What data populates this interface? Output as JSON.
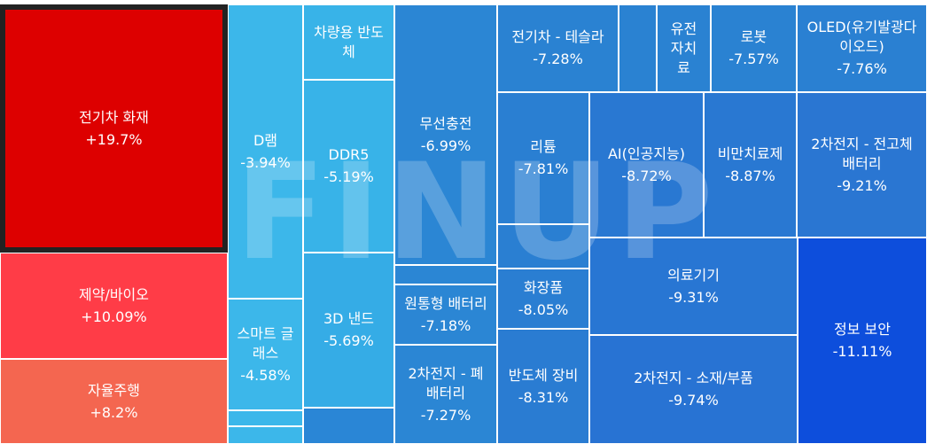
{
  "watermark": "FINUP",
  "chart_data": {
    "type": "treemap",
    "value_unit": "%",
    "items": [
      {
        "id": "ev-fire",
        "label": "전기차 화재",
        "value": "+19.7%",
        "change": 19.7,
        "color": "#dd0000",
        "selected": true
      },
      {
        "id": "pharma-bio",
        "label": "제약/바이오",
        "value": "+10.09%",
        "change": 10.09,
        "color": "#ff3c47"
      },
      {
        "id": "autonomous",
        "label": "자율주행",
        "value": "+8.2%",
        "change": 8.2,
        "color": "#f46650"
      },
      {
        "id": "dram",
        "label": "D램",
        "value": "-3.94%",
        "change": -3.94,
        "color": "#3cb7ea"
      },
      {
        "id": "smart-glass",
        "label": "스마트 글\n래스",
        "value": "-4.58%",
        "change": -4.58,
        "color": "#3cb7ea"
      },
      {
        "id": "misc-a",
        "label": "",
        "value": "",
        "color": "#3cb7ea"
      },
      {
        "id": "misc-b",
        "label": "",
        "value": "",
        "color": "#3cb7ea"
      },
      {
        "id": "auto-semi",
        "label": "차량용 반도\n체",
        "value": "",
        "color": "#38b3e8"
      },
      {
        "id": "ddr5",
        "label": "DDR5",
        "value": "-5.19%",
        "change": -5.19,
        "color": "#38b3e8"
      },
      {
        "id": "3d-nand",
        "label": "3D 낸드",
        "value": "-5.69%",
        "change": -5.69,
        "color": "#35ace6"
      },
      {
        "id": "misc-c",
        "label": "",
        "value": "",
        "color": "#2a86d6"
      },
      {
        "id": "wireless-charge",
        "label": "무선충전",
        "value": "-6.99%",
        "change": -6.99,
        "color": "#2b86d4"
      },
      {
        "id": "misc-d",
        "label": "",
        "value": "",
        "color": "#2b86d4"
      },
      {
        "id": "cyl-battery",
        "label": "원통형 배터리",
        "value": "-7.18%",
        "change": -7.18,
        "color": "#2b86d4"
      },
      {
        "id": "battery-recycle",
        "label": "2차전지 - 폐\n배터리",
        "value": "-7.27%",
        "change": -7.27,
        "color": "#2b86d4"
      },
      {
        "id": "ev-tesla",
        "label": "전기차 - 테슬라",
        "value": "-7.28%",
        "change": -7.28,
        "color": "#2a82d2"
      },
      {
        "id": "misc-e",
        "label": "",
        "value": "",
        "color": "#2a82d2"
      },
      {
        "id": "gene-therapy",
        "label": "유전\n자치\n료",
        "value": "",
        "color": "#2a82d2"
      },
      {
        "id": "robot",
        "label": "로봇",
        "value": "-7.57%",
        "change": -7.57,
        "color": "#2a82d2"
      },
      {
        "id": "oled",
        "label": "OLED(유기발광다\n이오드)",
        "value": "-7.76%",
        "change": -7.76,
        "color": "#2a80d2"
      },
      {
        "id": "lithium",
        "label": "리튬",
        "value": "-7.81%",
        "change": -7.81,
        "color": "#2a7fd2"
      },
      {
        "id": "misc-f",
        "label": "",
        "value": "",
        "color": "#2a7fd2"
      },
      {
        "id": "cosmetics",
        "label": "화장품",
        "value": "-8.05%",
        "change": -8.05,
        "color": "#2a7ed2"
      },
      {
        "id": "semi-equip",
        "label": "반도체 장비",
        "value": "-8.31%",
        "change": -8.31,
        "color": "#2a7cd2"
      },
      {
        "id": "ai",
        "label": "AI(인공지능)",
        "value": "-8.72%",
        "change": -8.72,
        "color": "#2978d2"
      },
      {
        "id": "obesity",
        "label": "비만치료제",
        "value": "-8.87%",
        "change": -8.87,
        "color": "#2978d2"
      },
      {
        "id": "solid-battery",
        "label": "2차전지 - 전고체\n배터리",
        "value": "-9.21%",
        "change": -9.21,
        "color": "#2a76d2"
      },
      {
        "id": "medical-device",
        "label": "의료기기",
        "value": "-9.31%",
        "change": -9.31,
        "color": "#2876d3"
      },
      {
        "id": "battery-materials",
        "label": "2차전지 - 소재/부품",
        "value": "-9.74%",
        "change": -9.74,
        "color": "#2873d3"
      },
      {
        "id": "info-security",
        "label": "정보 보안",
        "value": "-11.11%",
        "change": -11.11,
        "color": "#0d4edc"
      }
    ]
  }
}
